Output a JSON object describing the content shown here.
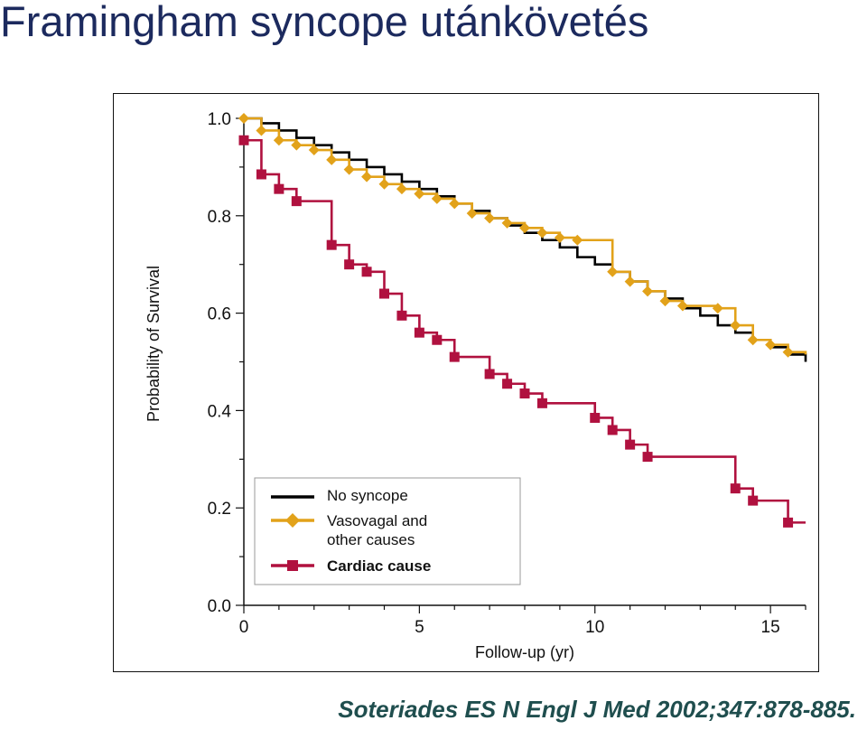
{
  "slide": {
    "title": "Framingham syncope utánkövetés",
    "citation": "Soteriades ES N Engl J Med 2002;347:878-885."
  },
  "chart_data": {
    "type": "line",
    "subtype": "kaplan-meier-step",
    "xlabel": "Follow-up (yr)",
    "ylabel": "Probability of Survival",
    "xlim": [
      0,
      16
    ],
    "ylim": [
      0,
      1.0
    ],
    "x_ticks": [
      0,
      5,
      10,
      15
    ],
    "y_ticks": [
      0.0,
      0.2,
      0.4,
      0.6,
      0.8,
      1.0
    ],
    "y_tick_labels": [
      "0.0",
      "0.2",
      "0.4",
      "0.6",
      "0.8",
      "1.0"
    ],
    "grid": false,
    "legend_position": "bottom-left",
    "series": [
      {
        "name": "No syncope",
        "color": "#000000",
        "marker": "none",
        "points": [
          [
            0,
            1.0
          ],
          [
            0.5,
            0.99
          ],
          [
            1,
            0.975
          ],
          [
            1.5,
            0.96
          ],
          [
            2,
            0.945
          ],
          [
            2.5,
            0.93
          ],
          [
            3,
            0.915
          ],
          [
            3.5,
            0.9
          ],
          [
            4,
            0.885
          ],
          [
            4.5,
            0.87
          ],
          [
            5,
            0.855
          ],
          [
            5.5,
            0.84
          ],
          [
            6,
            0.825
          ],
          [
            6.5,
            0.81
          ],
          [
            7,
            0.795
          ],
          [
            7.5,
            0.78
          ],
          [
            8,
            0.765
          ],
          [
            8.5,
            0.75
          ],
          [
            9,
            0.735
          ],
          [
            9.5,
            0.715
          ],
          [
            10,
            0.7
          ],
          [
            10.5,
            0.685
          ],
          [
            11,
            0.665
          ],
          [
            11.5,
            0.645
          ],
          [
            12,
            0.63
          ],
          [
            12.5,
            0.61
          ],
          [
            13,
            0.595
          ],
          [
            13.5,
            0.575
          ],
          [
            14,
            0.56
          ],
          [
            14.5,
            0.545
          ],
          [
            15,
            0.53
          ],
          [
            15.5,
            0.515
          ],
          [
            16,
            0.5
          ]
        ]
      },
      {
        "name": "Vasovagal and other causes",
        "color": "#e2a21a",
        "marker": "diamond",
        "points": [
          [
            0,
            1.0
          ],
          [
            0.5,
            0.975
          ],
          [
            1,
            0.955
          ],
          [
            1.5,
            0.945
          ],
          [
            2,
            0.935
          ],
          [
            2.5,
            0.915
          ],
          [
            3,
            0.895
          ],
          [
            3.5,
            0.88
          ],
          [
            4,
            0.865
          ],
          [
            4.5,
            0.855
          ],
          [
            5,
            0.845
          ],
          [
            5.5,
            0.835
          ],
          [
            6,
            0.825
          ],
          [
            6.5,
            0.805
          ],
          [
            7,
            0.795
          ],
          [
            7.5,
            0.785
          ],
          [
            8,
            0.775
          ],
          [
            8.5,
            0.765
          ],
          [
            9,
            0.755
          ],
          [
            9.5,
            0.75
          ],
          [
            10.5,
            0.685
          ],
          [
            11,
            0.665
          ],
          [
            11.5,
            0.645
          ],
          [
            12,
            0.625
          ],
          [
            12.5,
            0.615
          ],
          [
            13.5,
            0.61
          ],
          [
            14,
            0.575
          ],
          [
            14.5,
            0.545
          ],
          [
            15,
            0.535
          ],
          [
            15.5,
            0.52
          ],
          [
            16,
            0.515
          ]
        ]
      },
      {
        "name": "Cardiac cause",
        "color": "#b0113f",
        "marker": "square",
        "points": [
          [
            0,
            0.955
          ],
          [
            0.5,
            0.885
          ],
          [
            1,
            0.855
          ],
          [
            1.5,
            0.83
          ],
          [
            2.5,
            0.74
          ],
          [
            3,
            0.7
          ],
          [
            3.5,
            0.685
          ],
          [
            4,
            0.64
          ],
          [
            4.5,
            0.595
          ],
          [
            5,
            0.56
          ],
          [
            5.5,
            0.545
          ],
          [
            6,
            0.51
          ],
          [
            7,
            0.475
          ],
          [
            7.5,
            0.455
          ],
          [
            8,
            0.435
          ],
          [
            8.5,
            0.415
          ],
          [
            10,
            0.385
          ],
          [
            10.5,
            0.36
          ],
          [
            11,
            0.33
          ],
          [
            11.5,
            0.305
          ],
          [
            14,
            0.24
          ],
          [
            14.5,
            0.215
          ],
          [
            15.5,
            0.17
          ],
          [
            16,
            0.17
          ]
        ]
      }
    ],
    "legend": {
      "no_syncope": "No syncope",
      "vasovagal_line1": "Vasovagal and",
      "vasovagal_line2": "other causes",
      "cardiac": "Cardiac cause"
    }
  }
}
